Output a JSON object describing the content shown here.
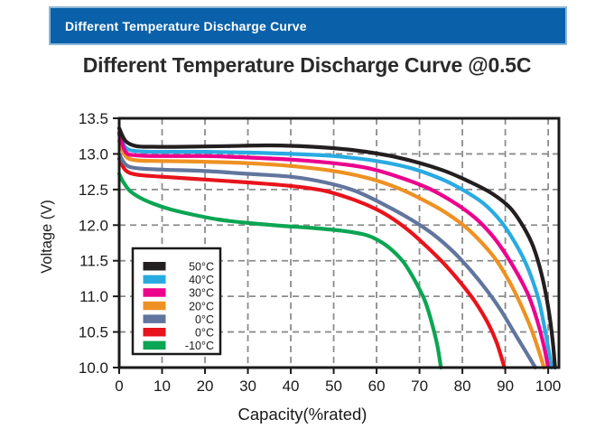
{
  "banner": {
    "text": "Different Temperature Discharge Curve",
    "bg_color": "#0a61a9",
    "text_color": "#ffffff"
  },
  "chart_data": {
    "type": "line",
    "title": "Different Temperature Discharge Curve @0.5C",
    "xlabel": "Capacity(%rated)",
    "ylabel": "Voltage (V)",
    "xlim": [
      0,
      102.5
    ],
    "ylim": [
      10.0,
      13.5
    ],
    "x_ticks": [
      "0",
      "10",
      "20",
      "30",
      "40",
      "50",
      "60",
      "70",
      "80",
      "90",
      "100"
    ],
    "y_ticks": [
      "10.0",
      "10.5",
      "11.0",
      "11.5",
      "12.0",
      "12.5",
      "13.0",
      "13.5"
    ],
    "grid": "dashed",
    "grid_color": "#8c8c8c",
    "axis_color": "#1a1a1a",
    "legend_position": "lower-left",
    "series": [
      {
        "name": "50°C",
        "color": "#231f20",
        "points": [
          [
            0,
            13.36
          ],
          [
            1.5,
            13.18
          ],
          [
            4,
            13.11
          ],
          [
            8,
            13.1
          ],
          [
            15,
            13.1
          ],
          [
            25,
            13.11
          ],
          [
            35,
            13.12
          ],
          [
            45,
            13.1
          ],
          [
            55,
            13.05
          ],
          [
            65,
            12.95
          ],
          [
            75,
            12.78
          ],
          [
            82,
            12.6
          ],
          [
            87,
            12.44
          ],
          [
            91,
            12.25
          ],
          [
            94,
            12.0
          ],
          [
            96.5,
            11.7
          ],
          [
            98.5,
            11.3
          ],
          [
            100,
            10.85
          ],
          [
            101,
            10.4
          ],
          [
            101.6,
            10.0
          ]
        ]
      },
      {
        "name": "40°C",
        "color": "#29abe2",
        "points": [
          [
            0,
            13.27
          ],
          [
            1.5,
            13.09
          ],
          [
            4,
            13.04
          ],
          [
            10,
            13.03
          ],
          [
            20,
            13.03
          ],
          [
            30,
            13.02
          ],
          [
            40,
            13.0
          ],
          [
            50,
            12.97
          ],
          [
            60,
            12.9
          ],
          [
            68,
            12.8
          ],
          [
            75,
            12.65
          ],
          [
            80,
            12.5
          ],
          [
            85,
            12.3
          ],
          [
            89,
            12.05
          ],
          [
            92,
            11.78
          ],
          [
            94.5,
            11.5
          ],
          [
            96.5,
            11.2
          ],
          [
            98,
            10.9
          ],
          [
            99.5,
            10.45
          ],
          [
            100.8,
            10.0
          ]
        ]
      },
      {
        "name": "30°C",
        "color": "#ec008c",
        "points": [
          [
            0,
            13.3
          ],
          [
            1.5,
            13.03
          ],
          [
            4,
            12.98
          ],
          [
            10,
            12.97
          ],
          [
            20,
            12.97
          ],
          [
            30,
            12.95
          ],
          [
            40,
            12.92
          ],
          [
            50,
            12.87
          ],
          [
            58,
            12.8
          ],
          [
            65,
            12.68
          ],
          [
            72,
            12.52
          ],
          [
            78,
            12.32
          ],
          [
            83,
            12.1
          ],
          [
            87,
            11.85
          ],
          [
            90,
            11.6
          ],
          [
            93,
            11.3
          ],
          [
            95.5,
            11.0
          ],
          [
            97.5,
            10.65
          ],
          [
            99,
            10.3
          ],
          [
            100,
            10.0
          ]
        ]
      },
      {
        "name": "20°C",
        "color": "#ee9123",
        "points": [
          [
            0,
            13.18
          ],
          [
            1.5,
            12.97
          ],
          [
            4,
            12.91
          ],
          [
            10,
            12.9
          ],
          [
            20,
            12.89
          ],
          [
            30,
            12.87
          ],
          [
            40,
            12.83
          ],
          [
            50,
            12.76
          ],
          [
            58,
            12.66
          ],
          [
            65,
            12.52
          ],
          [
            71,
            12.35
          ],
          [
            76,
            12.18
          ],
          [
            81,
            11.96
          ],
          [
            85,
            11.72
          ],
          [
            88,
            11.5
          ],
          [
            91,
            11.2
          ],
          [
            93.5,
            10.9
          ],
          [
            96,
            10.55
          ],
          [
            98,
            10.2
          ],
          [
            99,
            10.0
          ]
        ]
      },
      {
        "name": "0°C",
        "color": "#61759e",
        "points": [
          [
            0,
            13.0
          ],
          [
            1.5,
            12.85
          ],
          [
            4,
            12.8
          ],
          [
            10,
            12.78
          ],
          [
            20,
            12.76
          ],
          [
            30,
            12.72
          ],
          [
            40,
            12.68
          ],
          [
            48,
            12.6
          ],
          [
            55,
            12.48
          ],
          [
            62,
            12.28
          ],
          [
            68,
            12.08
          ],
          [
            73,
            11.88
          ],
          [
            78,
            11.62
          ],
          [
            82,
            11.36
          ],
          [
            86,
            11.06
          ],
          [
            89,
            10.8
          ],
          [
            92,
            10.5
          ],
          [
            95,
            10.2
          ],
          [
            97,
            10.0
          ]
        ]
      },
      {
        "name": "0°C",
        "color": "#e8131b",
        "points": [
          [
            0,
            12.93
          ],
          [
            1.5,
            12.77
          ],
          [
            4,
            12.71
          ],
          [
            10,
            12.68
          ],
          [
            20,
            12.64
          ],
          [
            30,
            12.6
          ],
          [
            40,
            12.55
          ],
          [
            48,
            12.48
          ],
          [
            55,
            12.35
          ],
          [
            60,
            12.22
          ],
          [
            64,
            12.08
          ],
          [
            68,
            11.9
          ],
          [
            72,
            11.68
          ],
          [
            76,
            11.44
          ],
          [
            80,
            11.16
          ],
          [
            83,
            10.92
          ],
          [
            86,
            10.62
          ],
          [
            88,
            10.35
          ],
          [
            89.8,
            10.0
          ]
        ]
      },
      {
        "name": "-10°C",
        "color": "#0ba553",
        "points": [
          [
            0,
            12.72
          ],
          [
            1,
            12.6
          ],
          [
            2.5,
            12.48
          ],
          [
            5,
            12.38
          ],
          [
            8,
            12.3
          ],
          [
            12,
            12.22
          ],
          [
            17,
            12.15
          ],
          [
            23,
            12.08
          ],
          [
            30,
            12.03
          ],
          [
            38,
            11.99
          ],
          [
            45,
            11.96
          ],
          [
            52,
            11.92
          ],
          [
            57,
            11.87
          ],
          [
            60,
            11.8
          ],
          [
            63,
            11.68
          ],
          [
            66,
            11.5
          ],
          [
            68,
            11.32
          ],
          [
            70,
            11.1
          ],
          [
            71.5,
            10.9
          ],
          [
            73,
            10.6
          ],
          [
            74.2,
            10.3
          ],
          [
            75,
            10.0
          ]
        ]
      }
    ]
  }
}
